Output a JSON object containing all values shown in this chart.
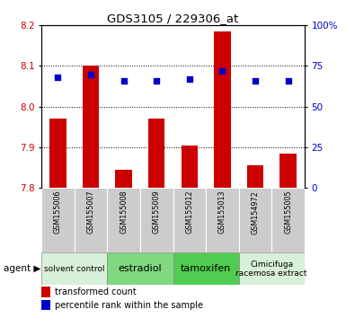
{
  "title": "GDS3105 / 229306_at",
  "samples": [
    "GSM155006",
    "GSM155007",
    "GSM155008",
    "GSM155009",
    "GSM155012",
    "GSM155013",
    "GSM154972",
    "GSM155005"
  ],
  "bar_values": [
    7.97,
    8.1,
    7.845,
    7.97,
    7.905,
    8.185,
    7.855,
    7.885
  ],
  "bar_bottom": 7.8,
  "percentile_values": [
    68,
    70,
    66,
    66,
    67,
    72,
    66,
    66
  ],
  "ylim_left": [
    7.8,
    8.2
  ],
  "ylim_right": [
    0,
    100
  ],
  "yticks_left": [
    7.8,
    7.9,
    8.0,
    8.1,
    8.2
  ],
  "yticks_right": [
    0,
    25,
    50,
    75,
    100
  ],
  "ytick_labels_right": [
    "0",
    "25",
    "50",
    "75",
    "100%"
  ],
  "bar_color": "#cc0000",
  "dot_color": "#0000cc",
  "agent_groups": [
    {
      "label": "solvent control",
      "start": 0,
      "end": 2,
      "color": "#d8f0d8",
      "fontsize": 6.5
    },
    {
      "label": "estradiol",
      "start": 2,
      "end": 4,
      "color": "#80d880",
      "fontsize": 8
    },
    {
      "label": "tamoxifen",
      "start": 4,
      "end": 6,
      "color": "#50cc50",
      "fontsize": 8
    },
    {
      "label": "Cimicifuga\nracemosa extract",
      "start": 6,
      "end": 8,
      "color": "#d8f0d8",
      "fontsize": 6.5
    }
  ],
  "xlabel_agent": "agent",
  "legend_bar_label": "transformed count",
  "legend_dot_label": "percentile rank within the sample",
  "tick_label_color_left": "#cc0000",
  "tick_label_color_right": "#0000cc",
  "sample_bg": "#cccccc",
  "plot_bg": "#ffffff"
}
